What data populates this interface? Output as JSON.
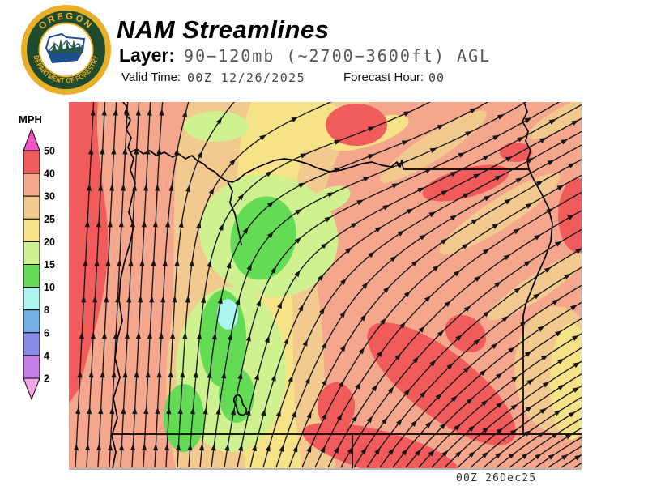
{
  "header": {
    "title": "NAM Streamlines",
    "layer_label": "Layer:",
    "layer_value": "90−120mb (~2700−3600ft) AGL",
    "valid_time_label": "Valid Time:",
    "valid_time_value": "00Z 12/26/2025",
    "forecast_hour_label": "Forecast Hour:",
    "forecast_hour_value": "00"
  },
  "logo": {
    "top_text": "OREGON",
    "bottom_text": "DEPARTMENT OF FORESTRY",
    "gold": "#e9af28",
    "dark_green": "#1e4a2d",
    "blue": "#1d4f8f",
    "tree_green": "#2a5a35"
  },
  "legend": {
    "title": "MPH",
    "ticks": [
      "50",
      "40",
      "30",
      "25",
      "20",
      "15",
      "10",
      "8",
      "6",
      "4",
      "2"
    ],
    "cell_colors": [
      "#f15b5b",
      "#f5a78e",
      "#f2c98f",
      "#f6e287",
      "#cff18f",
      "#64db55",
      "#abf4ef",
      "#76aee9",
      "#8a8ae9",
      "#c57de8"
    ],
    "arrow_top_color": "#f753c4",
    "arrow_bottom_color": "#f2a9e3"
  },
  "map": {
    "timestamp": "00Z 26Dec25",
    "stream_color": "#161616",
    "border_color": "#000000",
    "fill_colors": {
      "base_30_40": "#f5a78e",
      "red_40_50": "#f15b5b",
      "tan_25_30": "#f2c98f",
      "yellow_20_25": "#f6e287",
      "pale_green_15_20": "#cff18f",
      "green_10_15": "#64db55",
      "cyan_8_10": "#abf4ef"
    }
  }
}
